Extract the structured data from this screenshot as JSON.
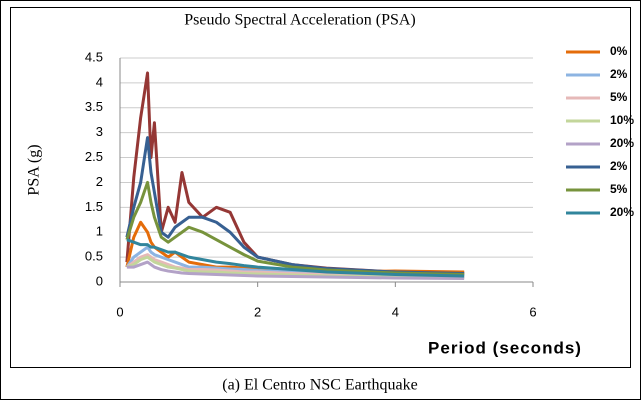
{
  "chart_data": {
    "type": "line",
    "title": "Pseudo Spectral Acceleration (PSA)",
    "x_label": "Period (seconds)",
    "y_label": "PSA (g)",
    "caption": "(a) El Centro NSC Earthquake",
    "x": [
      0.1,
      0.2,
      0.3,
      0.4,
      0.45,
      0.5,
      0.6,
      0.7,
      0.8,
      0.9,
      1.0,
      1.2,
      1.4,
      1.6,
      1.8,
      2.0,
      2.5,
      3,
      4,
      5
    ],
    "xlim": [
      0,
      6
    ],
    "xticks": [
      0,
      2,
      4,
      6
    ],
    "ylim": [
      0,
      4.5
    ],
    "yticks": [
      0,
      0.5,
      1,
      1.5,
      2,
      2.5,
      3,
      3.5,
      4,
      4.5
    ],
    "grid": true,
    "legend": "right",
    "series": [
      {
        "color": "#953735",
        "values": [
          0.4,
          2.1,
          3.3,
          4.2,
          2.5,
          3.2,
          1.0,
          1.5,
          1.2,
          2.2,
          1.6,
          1.3,
          1.5,
          1.4,
          0.8,
          0.5,
          0.35,
          0.28,
          0.2,
          0.18
        ]
      },
      {
        "name": "0%",
        "color": "#e46c0a",
        "values": [
          0.3,
          0.9,
          1.2,
          1.0,
          0.8,
          0.7,
          0.6,
          0.5,
          0.6,
          0.5,
          0.4,
          0.35,
          0.3,
          0.3,
          0.28,
          0.25,
          0.22,
          0.2,
          0.22,
          0.2
        ]
      },
      {
        "name": "2%",
        "color": "#8db4e2",
        "values": [
          0.3,
          0.5,
          0.6,
          0.7,
          0.6,
          0.55,
          0.5,
          0.45,
          0.4,
          0.35,
          0.3,
          0.3,
          0.28,
          0.26,
          0.25,
          0.23,
          0.2,
          0.17,
          0.14,
          0.12
        ]
      },
      {
        "name": "5%",
        "color": "#e6b9b8",
        "values": [
          0.3,
          0.4,
          0.5,
          0.55,
          0.5,
          0.45,
          0.4,
          0.35,
          0.3,
          0.28,
          0.25,
          0.25,
          0.24,
          0.22,
          0.2,
          0.2,
          0.17,
          0.15,
          0.12,
          0.1
        ]
      },
      {
        "name": "10%",
        "color": "#c3d69b",
        "values": [
          0.3,
          0.35,
          0.45,
          0.5,
          0.45,
          0.4,
          0.35,
          0.3,
          0.28,
          0.25,
          0.22,
          0.2,
          0.2,
          0.18,
          0.17,
          0.16,
          0.14,
          0.12,
          0.1,
          0.09
        ]
      },
      {
        "name": "20%",
        "color": "#b3a2c7",
        "values": [
          0.3,
          0.3,
          0.35,
          0.4,
          0.35,
          0.3,
          0.25,
          0.22,
          0.2,
          0.18,
          0.17,
          0.16,
          0.15,
          0.14,
          0.13,
          0.12,
          0.11,
          0.1,
          0.08,
          0.07
        ]
      },
      {
        "name": "2%",
        "color": "#376092",
        "values": [
          0.9,
          1.5,
          2.0,
          2.9,
          2.2,
          1.8,
          1.0,
          0.9,
          1.1,
          1.2,
          1.3,
          1.3,
          1.2,
          1.0,
          0.7,
          0.5,
          0.35,
          0.27,
          0.2,
          0.17
        ]
      },
      {
        "name": "5%",
        "color": "#77933c",
        "values": [
          0.85,
          1.3,
          1.6,
          2.0,
          1.6,
          1.3,
          0.9,
          0.8,
          0.9,
          1.0,
          1.1,
          1.0,
          0.85,
          0.7,
          0.55,
          0.42,
          0.3,
          0.24,
          0.18,
          0.15
        ]
      },
      {
        "name": "20%",
        "color": "#31859c",
        "values": [
          0.85,
          0.8,
          0.75,
          0.75,
          0.7,
          0.7,
          0.65,
          0.6,
          0.6,
          0.55,
          0.5,
          0.45,
          0.4,
          0.37,
          0.33,
          0.3,
          0.25,
          0.2,
          0.15,
          0.12
        ]
      }
    ]
  }
}
